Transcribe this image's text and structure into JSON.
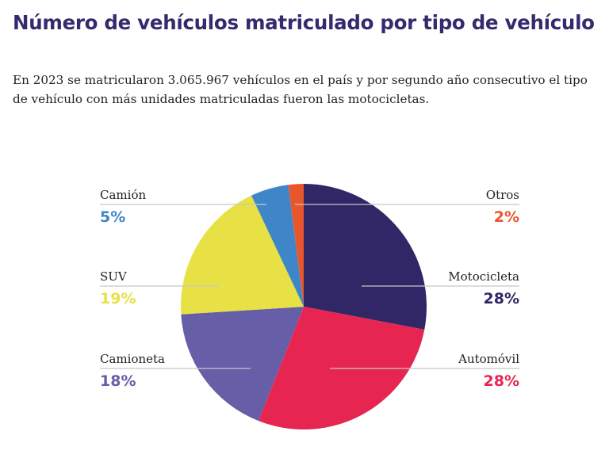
{
  "title": "Número de vehículos matriculado por tipo de vehículo",
  "subtitle": "En 2023 se matricularon 3.065.967 vehículos en el país y por segundo año consecutivo el tipo de vehículo con más unidades matriculadas fueron las motocicletas.",
  "chart_data": {
    "type": "pie",
    "unit": "%",
    "slices": [
      {
        "name": "Motocicleta",
        "value": 28,
        "label": "28%",
        "color": "#312767"
      },
      {
        "name": "Automóvil",
        "value": 28,
        "label": "28%",
        "color": "#e62651"
      },
      {
        "name": "Camioneta",
        "value": 18,
        "label": "18%",
        "color": "#665ea6"
      },
      {
        "name": "SUV",
        "value": 19,
        "label": "19%",
        "color": "#e7e145"
      },
      {
        "name": "Camión",
        "value": 5,
        "label": "5%",
        "color": "#3f86c9"
      },
      {
        "name": "Otros",
        "value": 2,
        "label": "2%",
        "color": "#e9562c"
      }
    ],
    "legend": "leader-line labels around the pie"
  }
}
